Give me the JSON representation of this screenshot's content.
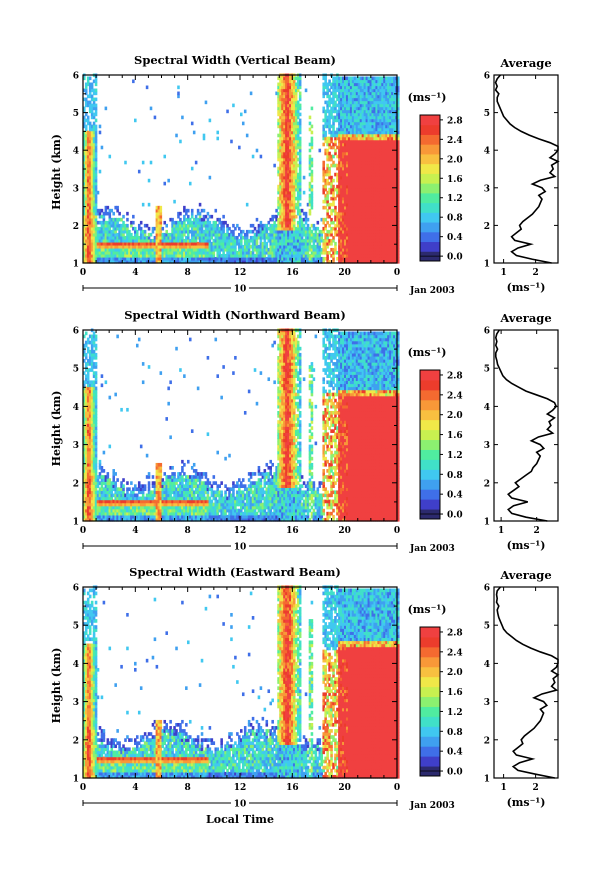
{
  "chart_data": [
    {
      "type": "heatmap",
      "title": "Spectral Width (Vertical Beam)",
      "ylabel": "Height (km)",
      "ylim": [
        1,
        6
      ],
      "yticks": [
        "1",
        "2",
        "3",
        "4",
        "5",
        "6"
      ],
      "xlim": [
        0,
        24
      ],
      "xticks": [
        "0",
        "4",
        "8",
        "12",
        "16",
        "20",
        "0"
      ],
      "date_day": "10",
      "date_label": "Jan 2003",
      "colorbar": {
        "unit": "(ms⁻¹)",
        "ticks": [
          "0.0",
          "0.4",
          "0.8",
          "1.2",
          "1.6",
          "2.0",
          "2.4",
          "2.8"
        ],
        "range": [
          0,
          3.0
        ],
        "colors": [
          "#2c2a6e",
          "#3f3fc9",
          "#3f6fe8",
          "#3fa0f0",
          "#40c8f0",
          "#40e0c8",
          "#50eca0",
          "#8cf070",
          "#c8f050",
          "#f0e848",
          "#f8c040",
          "#f89838",
          "#f46a30",
          "#ec3c2c",
          "#f04040"
        ]
      },
      "average": {
        "title": "Average",
        "xlabel": "(ms⁻¹)",
        "xticks": [
          "1",
          "2"
        ],
        "xlim": [
          0.7,
          2.7
        ],
        "ylim": [
          1,
          6
        ],
        "yticks": [
          "1",
          "2",
          "3",
          "4",
          "5",
          "6"
        ],
        "height": [
          1.0,
          1.1,
          1.2,
          1.3,
          1.4,
          1.5,
          1.6,
          1.7,
          1.8,
          1.9,
          2.0,
          2.1,
          2.2,
          2.3,
          2.4,
          2.5,
          2.6,
          2.7,
          2.8,
          2.9,
          3.0,
          3.1,
          3.2,
          3.3,
          3.4,
          3.5,
          3.6,
          3.7,
          3.8,
          3.9,
          4.0,
          4.1,
          4.2,
          4.3,
          4.4,
          4.5,
          4.6,
          4.7,
          4.8,
          4.9,
          5.0,
          5.1,
          5.2,
          5.3,
          5.4,
          5.5,
          5.6,
          5.7,
          5.8,
          5.9,
          6.0
        ],
        "value": [
          2.5,
          1.9,
          1.4,
          1.25,
          1.45,
          1.85,
          1.35,
          1.25,
          1.4,
          1.55,
          1.5,
          1.6,
          1.75,
          1.9,
          2.0,
          2.1,
          2.15,
          2.2,
          2.1,
          2.3,
          2.2,
          1.9,
          2.15,
          2.6,
          2.45,
          2.55,
          2.5,
          2.7,
          2.45,
          2.6,
          2.8,
          2.7,
          2.45,
          2.1,
          1.8,
          1.55,
          1.35,
          1.2,
          1.1,
          1.0,
          0.95,
          0.9,
          0.85,
          0.8,
          0.8,
          0.85,
          0.75,
          0.8,
          0.75,
          0.8,
          0.9
        ]
      }
    },
    {
      "type": "heatmap",
      "title": "Spectral Width (Northward Beam)",
      "ylabel": "Height (km)",
      "ylim": [
        1,
        6
      ],
      "yticks": [
        "1",
        "2",
        "3",
        "4",
        "5",
        "6"
      ],
      "xlim": [
        0,
        24
      ],
      "xticks": [
        "0",
        "4",
        "8",
        "12",
        "16",
        "20",
        "0"
      ],
      "date_day": "10",
      "date_label": "Jan 2003",
      "colorbar": {
        "unit": "(ms⁻¹)",
        "ticks": [
          "0.0",
          "0.4",
          "0.8",
          "1.2",
          "1.6",
          "2.0",
          "2.4",
          "2.8"
        ],
        "range": [
          0,
          3.0
        ],
        "colors": [
          "#2c2a6e",
          "#3f3fc9",
          "#3f6fe8",
          "#3fa0f0",
          "#40c8f0",
          "#40e0c8",
          "#50eca0",
          "#8cf070",
          "#c8f050",
          "#f0e848",
          "#f8c040",
          "#f89838",
          "#f46a30",
          "#ec3c2c",
          "#f04040"
        ]
      },
      "average": {
        "title": "Average",
        "xlabel": "(ms⁻¹)",
        "xticks": [
          "1",
          "2"
        ],
        "xlim": [
          0.8,
          2.6
        ],
        "ylim": [
          1,
          6
        ],
        "yticks": [
          "1",
          "2",
          "3",
          "4",
          "5",
          "6"
        ],
        "height": [
          1.0,
          1.1,
          1.2,
          1.3,
          1.4,
          1.5,
          1.6,
          1.7,
          1.8,
          1.9,
          2.0,
          2.1,
          2.2,
          2.3,
          2.4,
          2.5,
          2.6,
          2.7,
          2.8,
          2.9,
          3.0,
          3.1,
          3.2,
          3.3,
          3.4,
          3.5,
          3.6,
          3.7,
          3.8,
          3.9,
          4.0,
          4.1,
          4.2,
          4.3,
          4.4,
          4.5,
          4.6,
          4.7,
          4.8,
          4.9,
          5.0,
          5.1,
          5.2,
          5.3,
          5.4,
          5.5,
          5.6,
          5.7,
          5.8,
          5.9,
          6.0
        ],
        "value": [
          2.3,
          1.7,
          1.3,
          1.2,
          1.35,
          1.75,
          1.3,
          1.2,
          1.35,
          1.5,
          1.4,
          1.55,
          1.7,
          1.85,
          1.9,
          2.0,
          2.05,
          2.1,
          2.0,
          2.2,
          2.1,
          1.85,
          2.05,
          2.45,
          2.3,
          2.4,
          2.35,
          2.5,
          2.3,
          2.45,
          2.55,
          2.5,
          2.3,
          2.0,
          1.7,
          1.5,
          1.3,
          1.15,
          1.05,
          1.0,
          0.95,
          0.9,
          0.88,
          0.85,
          0.85,
          0.9,
          0.85,
          0.88,
          0.85,
          0.88,
          0.95
        ]
      }
    },
    {
      "type": "heatmap",
      "title": "Spectral Width (Eastward Beam)",
      "ylabel": "Height (km)",
      "ylim": [
        1,
        6
      ],
      "yticks": [
        "1",
        "2",
        "3",
        "4",
        "5",
        "6"
      ],
      "xlim": [
        0,
        24
      ],
      "xticks": [
        "0",
        "4",
        "8",
        "12",
        "16",
        "20",
        "0"
      ],
      "date_day": "10",
      "date_label": "Jan 2003",
      "xlabel": "Local Time",
      "colorbar": {
        "unit": "(ms⁻¹)",
        "ticks": [
          "0.0",
          "0.4",
          "0.8",
          "1.2",
          "1.6",
          "2.0",
          "2.4",
          "2.8"
        ],
        "range": [
          0,
          3.0
        ],
        "colors": [
          "#2c2a6e",
          "#3f3fc9",
          "#3f6fe8",
          "#3fa0f0",
          "#40c8f0",
          "#40e0c8",
          "#50eca0",
          "#8cf070",
          "#c8f050",
          "#f0e848",
          "#f8c040",
          "#f89838",
          "#f46a30",
          "#ec3c2c",
          "#f04040"
        ]
      },
      "average": {
        "title": "Average",
        "xlabel": "(ms⁻¹)",
        "xticks": [
          "1",
          "2"
        ],
        "xlim": [
          0.7,
          2.7
        ],
        "ylim": [
          1,
          6
        ],
        "yticks": [
          "1",
          "2",
          "3",
          "4",
          "5",
          "6"
        ],
        "height": [
          1.0,
          1.1,
          1.2,
          1.3,
          1.4,
          1.5,
          1.6,
          1.7,
          1.8,
          1.9,
          2.0,
          2.1,
          2.2,
          2.3,
          2.4,
          2.5,
          2.6,
          2.7,
          2.8,
          2.9,
          3.0,
          3.1,
          3.2,
          3.3,
          3.4,
          3.5,
          3.6,
          3.7,
          3.8,
          3.9,
          4.0,
          4.1,
          4.2,
          4.3,
          4.4,
          4.5,
          4.6,
          4.7,
          4.8,
          4.9,
          5.0,
          5.1,
          5.2,
          5.3,
          5.4,
          5.5,
          5.6,
          5.7,
          5.8,
          5.9,
          6.0
        ],
        "value": [
          2.6,
          2.0,
          1.45,
          1.3,
          1.5,
          1.9,
          1.4,
          1.3,
          1.45,
          1.6,
          1.55,
          1.65,
          1.8,
          1.95,
          2.05,
          2.15,
          2.2,
          2.25,
          2.15,
          2.35,
          2.25,
          1.95,
          2.2,
          2.65,
          2.5,
          2.6,
          2.55,
          2.75,
          2.5,
          2.65,
          2.85,
          2.75,
          2.5,
          2.15,
          1.85,
          1.6,
          1.4,
          1.25,
          1.1,
          1.0,
          0.95,
          0.9,
          0.85,
          0.82,
          0.8,
          0.85,
          0.78,
          0.8,
          0.78,
          0.8,
          0.9
        ]
      }
    }
  ]
}
